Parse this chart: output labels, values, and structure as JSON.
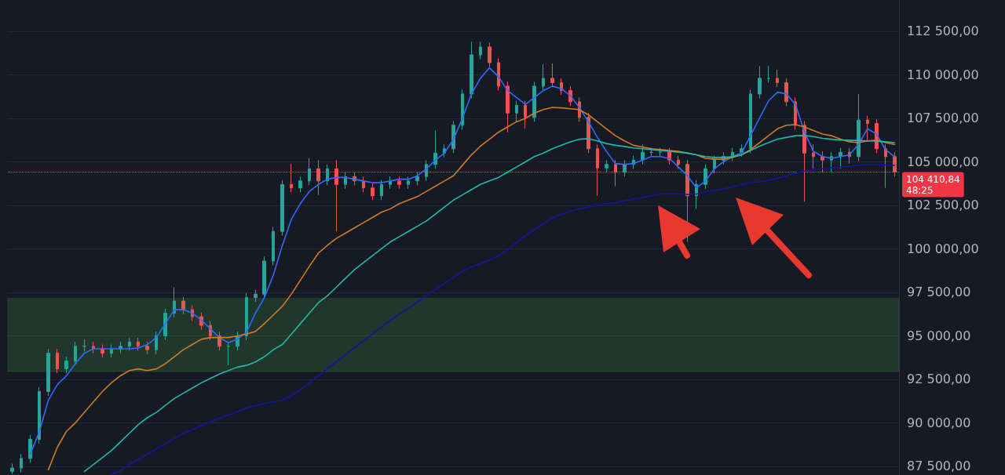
{
  "chart_data": {
    "type": "candlestick",
    "categories": [
      null,
      null,
      null,
      null,
      null,
      null,
      null,
      null,
      null,
      null,
      null,
      null,
      null,
      null,
      null,
      null,
      null,
      null,
      null,
      null,
      null,
      null,
      null,
      null,
      null,
      null,
      null,
      null,
      null,
      null,
      null,
      null,
      null,
      null,
      null,
      null,
      null,
      null,
      null,
      null,
      null,
      null,
      null,
      null,
      null,
      null,
      null,
      null,
      null,
      null,
      null,
      null,
      null,
      null,
      null,
      null,
      null,
      null,
      null,
      null,
      null,
      null,
      null,
      null,
      null,
      null,
      null,
      null,
      null,
      null,
      null,
      null,
      null,
      null,
      null,
      null,
      null,
      null,
      null,
      null,
      null,
      null,
      null,
      null,
      null,
      null,
      null,
      null,
      null,
      null,
      null,
      null,
      null,
      null,
      null,
      null,
      null,
      null,
      null
    ],
    "ohlc": [
      [
        87200,
        87650,
        87050,
        87400
      ],
      [
        87400,
        88200,
        87150,
        87950
      ],
      [
        87950,
        89300,
        87700,
        89050
      ],
      [
        89050,
        92050,
        88800,
        91800
      ],
      [
        91800,
        94250,
        91550,
        94000
      ],
      [
        94000,
        94250,
        92850,
        93100
      ],
      [
        93100,
        93800,
        92850,
        93550
      ],
      [
        93550,
        94650,
        93300,
        94400
      ],
      [
        94400,
        94800,
        94100,
        94400
      ],
      [
        94400,
        94650,
        94000,
        94250
      ],
      [
        94250,
        94500,
        93750,
        94000
      ],
      [
        94000,
        94500,
        93750,
        94250
      ],
      [
        94250,
        94650,
        94000,
        94400
      ],
      [
        94400,
        94900,
        94150,
        94650
      ],
      [
        94650,
        94900,
        94150,
        94400
      ],
      [
        94400,
        94650,
        93950,
        94200
      ],
      [
        94200,
        95250,
        93950,
        95000
      ],
      [
        95000,
        96550,
        94750,
        96300
      ],
      [
        96300,
        97800,
        96050,
        97000
      ],
      [
        97000,
        97250,
        96250,
        96500
      ],
      [
        96500,
        96750,
        95850,
        96100
      ],
      [
        96100,
        96350,
        95350,
        95600
      ],
      [
        95600,
        95850,
        94750,
        95000
      ],
      [
        95000,
        95250,
        94150,
        94400
      ],
      [
        94400,
        94650,
        93300,
        94400
      ],
      [
        94400,
        95250,
        94150,
        95000
      ],
      [
        95000,
        97450,
        94750,
        97200
      ],
      [
        97200,
        97650,
        96950,
        97400
      ],
      [
        97400,
        99550,
        97150,
        99300
      ],
      [
        99300,
        101250,
        99050,
        101000
      ],
      [
        101000,
        103950,
        100750,
        103700
      ],
      [
        103700,
        104900,
        103250,
        103500
      ],
      [
        103500,
        104150,
        103250,
        103900
      ],
      [
        103900,
        105200,
        103650,
        104600
      ],
      [
        104600,
        105100,
        103100,
        103900
      ],
      [
        103900,
        104850,
        103650,
        104600
      ],
      [
        104600,
        105100,
        101000,
        103700
      ],
      [
        103700,
        104400,
        103450,
        104150
      ],
      [
        104150,
        104400,
        103650,
        103900
      ],
      [
        103900,
        104150,
        103250,
        103500
      ],
      [
        103500,
        103750,
        102800,
        103050
      ],
      [
        103050,
        103950,
        102800,
        103700
      ],
      [
        103700,
        104150,
        103450,
        103900
      ],
      [
        103900,
        104150,
        103450,
        103700
      ],
      [
        103700,
        104150,
        103450,
        103900
      ],
      [
        103900,
        104400,
        103650,
        104150
      ],
      [
        104150,
        105100,
        103900,
        104850
      ],
      [
        104850,
        106800,
        104600,
        105500
      ],
      [
        105500,
        106000,
        105250,
        105750
      ],
      [
        105750,
        107350,
        105500,
        107100
      ],
      [
        107100,
        109150,
        106850,
        108900
      ],
      [
        108900,
        111900,
        108650,
        111150
      ],
      [
        111150,
        111900,
        110900,
        111600
      ],
      [
        111600,
        111850,
        110450,
        110700
      ],
      [
        110700,
        110950,
        109100,
        109350
      ],
      [
        109350,
        109600,
        106700,
        107800
      ],
      [
        107800,
        108500,
        107300,
        108250
      ],
      [
        108250,
        108500,
        106900,
        107550
      ],
      [
        107550,
        109600,
        107300,
        109350
      ],
      [
        109350,
        110600,
        109100,
        109800
      ],
      [
        109800,
        110650,
        109300,
        109550
      ],
      [
        109550,
        109800,
        108850,
        109100
      ],
      [
        109100,
        109350,
        108200,
        108450
      ],
      [
        108450,
        108700,
        107300,
        107550
      ],
      [
        107550,
        107800,
        105500,
        105750
      ],
      [
        105750,
        106000,
        103050,
        104650
      ],
      [
        104650,
        105100,
        104400,
        104850
      ],
      [
        104850,
        105100,
        103600,
        104400
      ],
      [
        104400,
        105100,
        104150,
        104850
      ],
      [
        104850,
        105350,
        104600,
        105100
      ],
      [
        105100,
        106000,
        104850,
        105550
      ],
      [
        105550,
        105800,
        105300,
        105550
      ],
      [
        105550,
        105800,
        105300,
        105550
      ],
      [
        105550,
        105800,
        104850,
        105100
      ],
      [
        105100,
        105350,
        104600,
        104850
      ],
      [
        104850,
        105100,
        100400,
        103050
      ],
      [
        103050,
        103950,
        102300,
        103700
      ],
      [
        103700,
        104850,
        103450,
        104600
      ],
      [
        104600,
        105350,
        104350,
        105100
      ],
      [
        105100,
        105550,
        104850,
        105300
      ],
      [
        105300,
        105800,
        105050,
        105550
      ],
      [
        105550,
        106000,
        105300,
        105750
      ],
      [
        105750,
        109150,
        105500,
        108900
      ],
      [
        108900,
        110500,
        108650,
        109800
      ],
      [
        109800,
        110500,
        109550,
        109800
      ],
      [
        109800,
        110300,
        109300,
        109550
      ],
      [
        109550,
        109800,
        108200,
        108450
      ],
      [
        108450,
        108700,
        106850,
        107100
      ],
      [
        107100,
        107350,
        102700,
        105500
      ],
      [
        105500,
        106000,
        104600,
        105300
      ],
      [
        105300,
        105600,
        104400,
        105100
      ],
      [
        105100,
        105550,
        104400,
        105300
      ],
      [
        105300,
        105800,
        104600,
        105550
      ],
      [
        105550,
        105800,
        104900,
        105300
      ],
      [
        105300,
        108900,
        105050,
        107400
      ],
      [
        107400,
        107650,
        106200,
        107200
      ],
      [
        107200,
        107450,
        105500,
        105750
      ],
      [
        105750,
        106000,
        103500,
        105300
      ],
      [
        105300,
        105550,
        104150,
        104410.84
      ]
    ],
    "series": [
      {
        "type": "line",
        "color": "#2f6bff",
        "values": [
          null,
          null,
          88200,
          89500,
          91300,
          92200,
          92700,
          93400,
          94000,
          94250,
          94250,
          94250,
          94250,
          94250,
          94300,
          94500,
          94900,
          95700,
          96500,
          96500,
          96300,
          95900,
          95400,
          94900,
          94600,
          94800,
          95200,
          96300,
          97200,
          98500,
          100200,
          101700,
          102600,
          103300,
          103700,
          104000,
          104100,
          104100,
          104000,
          103900,
          103800,
          103800,
          103900,
          104000,
          104000,
          104200,
          104600,
          105100,
          105500,
          106300,
          107500,
          108900,
          109800,
          110400,
          109900,
          109100,
          108700,
          108300,
          108700,
          109100,
          109350,
          109200,
          108800,
          108100,
          107300,
          106400,
          105600,
          104900,
          104850,
          104900,
          105100,
          105300,
          105300,
          105200,
          104700,
          104200,
          103500,
          103900,
          104600,
          105000,
          105300,
          105500,
          106500,
          107500,
          108500,
          109000,
          108900,
          108300,
          106700,
          105600,
          105300,
          105200,
          105300,
          105400,
          106000,
          106900,
          106600,
          105700,
          105300
        ]
      },
      {
        "type": "line",
        "color": "#d17a22",
        "values": [
          null,
          null,
          null,
          null,
          87300,
          88600,
          89500,
          90000,
          90600,
          91200,
          91800,
          92300,
          92700,
          93000,
          93100,
          93000,
          93100,
          93400,
          93800,
          94200,
          94500,
          94800,
          94900,
          94900,
          94900,
          95000,
          95100,
          95250,
          95700,
          96200,
          96700,
          97400,
          98200,
          99000,
          99750,
          100200,
          100600,
          100900,
          101200,
          101500,
          101800,
          102100,
          102300,
          102600,
          102800,
          103000,
          103300,
          103600,
          103900,
          104200,
          104800,
          105400,
          105900,
          106300,
          106700,
          107000,
          107300,
          107500,
          107800,
          108000,
          108130,
          108100,
          108050,
          108000,
          107700,
          107300,
          106900,
          106500,
          106200,
          105950,
          105850,
          105750,
          105700,
          105650,
          105600,
          105500,
          105400,
          105200,
          105150,
          105150,
          105250,
          105400,
          105700,
          106100,
          106500,
          106900,
          107100,
          107140,
          107000,
          106800,
          106600,
          106500,
          106300,
          106150,
          106100,
          106200,
          106250,
          106100,
          106000
        ]
      },
      {
        "type": "line",
        "color": "#23b8a8",
        "values": [
          null,
          null,
          null,
          null,
          null,
          null,
          null,
          null,
          87200,
          87600,
          88000,
          88400,
          88900,
          89400,
          89900,
          90300,
          90600,
          91000,
          91400,
          91700,
          92000,
          92300,
          92550,
          92800,
          93000,
          93200,
          93300,
          93500,
          93800,
          94200,
          94500,
          95100,
          95700,
          96300,
          96900,
          97300,
          97800,
          98300,
          98800,
          99200,
          99600,
          100000,
          100400,
          100700,
          101000,
          101300,
          101600,
          102000,
          102400,
          102800,
          103100,
          103400,
          103700,
          103900,
          104100,
          104400,
          104700,
          105000,
          105300,
          105500,
          105750,
          105950,
          106150,
          106300,
          106330,
          106200,
          106050,
          105950,
          105880,
          105800,
          105750,
          105700,
          105650,
          105610,
          105550,
          105500,
          105400,
          105300,
          105250,
          105250,
          105300,
          105400,
          105650,
          105900,
          106100,
          106300,
          106400,
          106500,
          106510,
          106450,
          106350,
          106300,
          106250,
          106240,
          106220,
          106200,
          106190,
          106150,
          106100
        ]
      },
      {
        "type": "line",
        "color": "#1414a0",
        "values": [
          null,
          null,
          null,
          null,
          null,
          null,
          null,
          null,
          null,
          null,
          null,
          87050,
          87250,
          87600,
          87900,
          88200,
          88500,
          88800,
          89100,
          89400,
          89600,
          89850,
          90050,
          90250,
          90450,
          90650,
          90850,
          91000,
          91100,
          91200,
          91300,
          91550,
          91900,
          92300,
          92700,
          93100,
          93500,
          93900,
          94300,
          94700,
          95100,
          95500,
          95900,
          96250,
          96600,
          96950,
          97300,
          97650,
          98000,
          98350,
          98700,
          98950,
          99150,
          99350,
          99600,
          99950,
          100350,
          100750,
          101100,
          101450,
          101750,
          102000,
          102150,
          102300,
          102400,
          102500,
          102590,
          102650,
          102750,
          102850,
          102950,
          103050,
          103150,
          103180,
          103150,
          103130,
          103150,
          103250,
          103350,
          103450,
          103550,
          103700,
          103800,
          103850,
          103950,
          104050,
          104200,
          104350,
          104480,
          104550,
          104600,
          104650,
          104700,
          104750,
          104800,
          104840,
          104840,
          104820,
          104800
        ]
      }
    ],
    "ylim": [
      87000,
      114300
    ],
    "yticks": [
      {
        "value": 87500,
        "label": "87 500,00"
      },
      {
        "value": 90000,
        "label": "90 000,00"
      },
      {
        "value": 92500,
        "label": "92 500,00"
      },
      {
        "value": 95000,
        "label": "95 000,00"
      },
      {
        "value": 97500,
        "label": "97 500,00"
      },
      {
        "value": 100000,
        "label": "100 000,00"
      },
      {
        "value": 102500,
        "label": "102 500,00"
      },
      {
        "value": 105000,
        "label": "105 000,00"
      },
      {
        "value": 107500,
        "label": "107 500,00"
      },
      {
        "value": 110000,
        "label": "110 000,00"
      },
      {
        "value": 112500,
        "label": "112 500,00"
      }
    ],
    "ref_lines": [
      {
        "axis": "y",
        "value": 104410.84,
        "label": "104 410,84",
        "color": "#f23645",
        "line_style": "dotted"
      }
    ],
    "bands": [
      {
        "axis": "y",
        "from": 92950,
        "to": 97150,
        "color": "#4caf50"
      }
    ],
    "annotations": [
      "48:25"
    ],
    "grid": "y",
    "tick_labels": "y"
  }
}
